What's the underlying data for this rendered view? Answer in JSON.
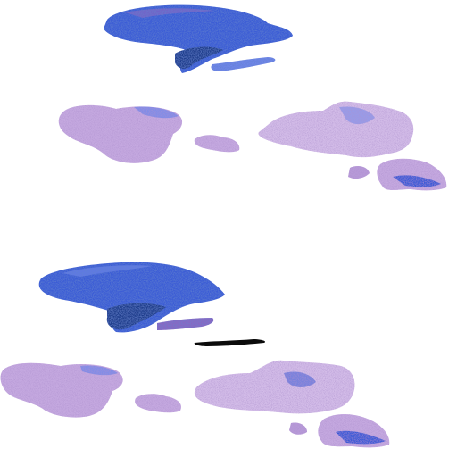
{
  "image": {
    "background": "#ffffff",
    "colors": {
      "blue_dark": "#1e3a8a",
      "blue_mid": "#3b5bd6",
      "blue_light": "#6f86e8",
      "violet_dark": "#5b3a9a",
      "violet_mid": "#8a66c2",
      "lavender": "#b79ad8",
      "pale_lilac": "#e1d2ef",
      "teal_speck": "#3fb0b0",
      "black_mark": "#0b0b0b"
    },
    "sections": [
      {
        "id": "top-row-1",
        "stain": "blue"
      },
      {
        "id": "top-row-2",
        "stain": "lilac"
      },
      {
        "id": "bottom-row-1",
        "stain": "blue"
      },
      {
        "id": "bottom-row-2",
        "stain": "lilac"
      }
    ]
  }
}
